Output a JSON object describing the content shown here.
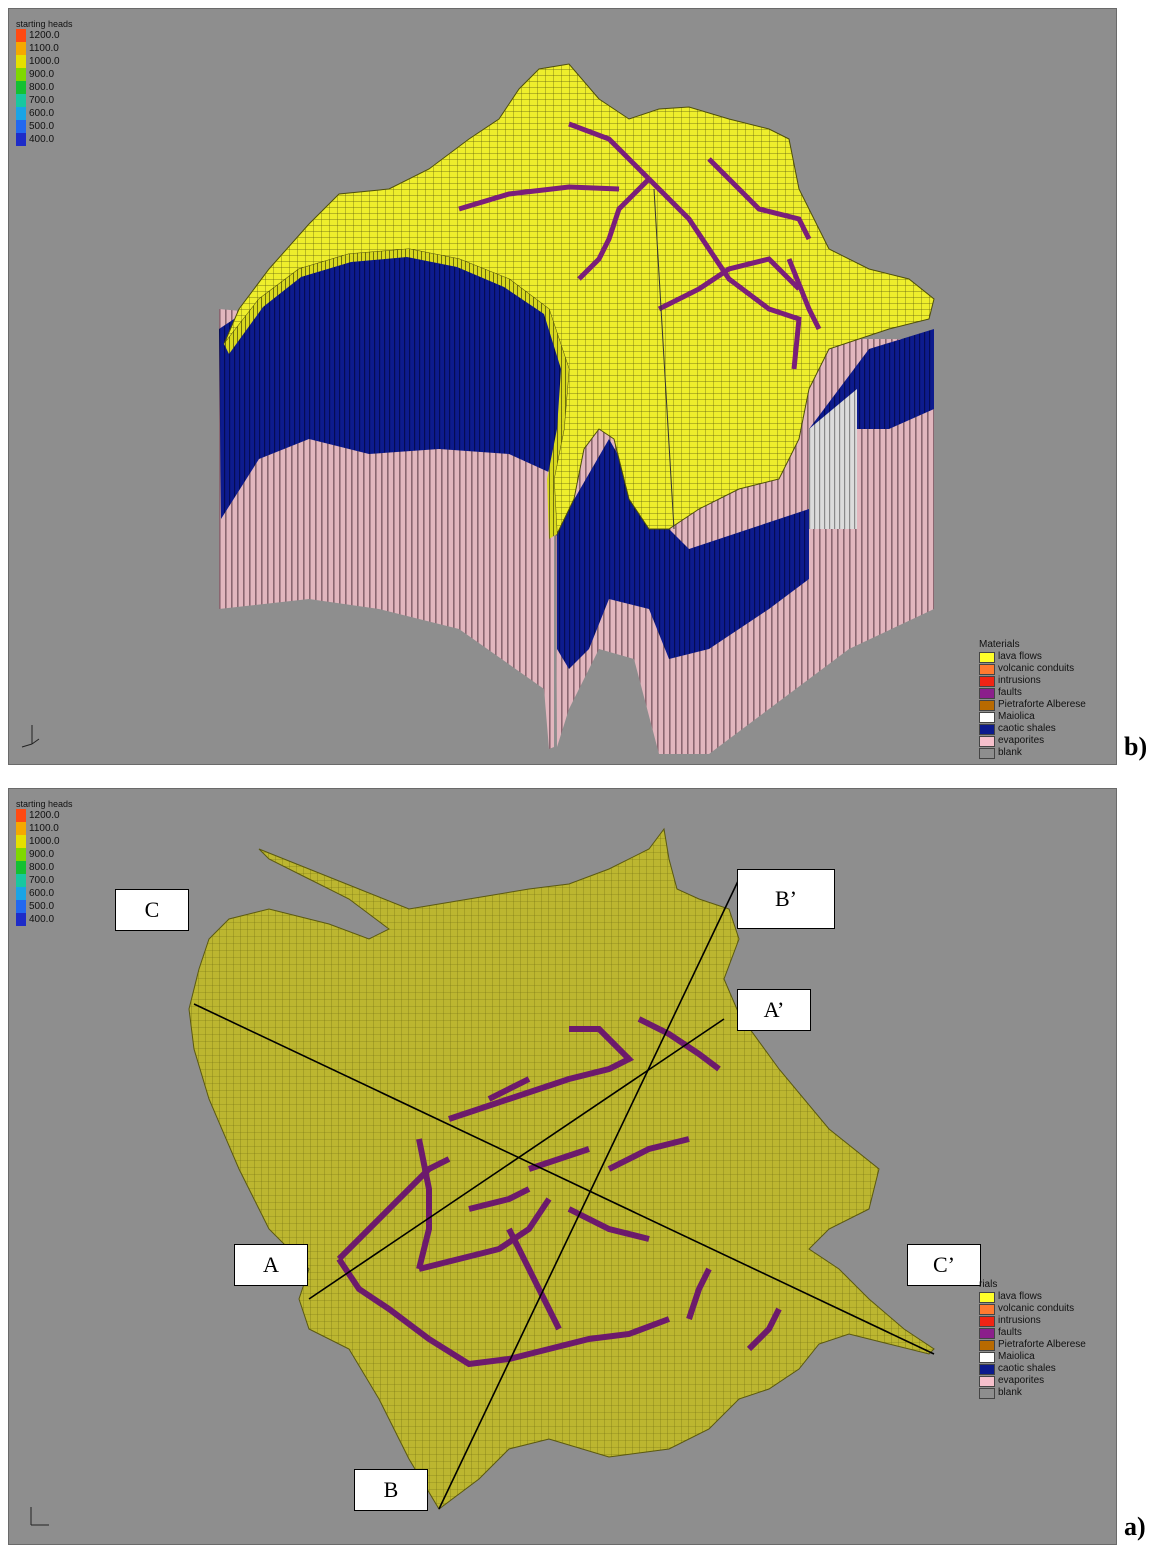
{
  "panel_b": {
    "label": "b)",
    "colorbar": {
      "title": "starting heads",
      "values": [
        "1200.0",
        "1100.0",
        "1000.0",
        "900.0",
        "800.0",
        "700.0",
        "600.0",
        "500.0",
        "400.0"
      ],
      "colors": [
        "#ff4a12",
        "#f5a800",
        "#e5e000",
        "#7fd800",
        "#14c032",
        "#18c8a0",
        "#1aa4e6",
        "#2268f0",
        "#1e2cc8"
      ]
    },
    "legend": {
      "title": "Materials",
      "items": [
        {
          "name": "lava flows",
          "color": "#ffff2a"
        },
        {
          "name": "volcanic conduits",
          "color": "#ff7a30"
        },
        {
          "name": "intrusions",
          "color": "#f02414"
        },
        {
          "name": "faults",
          "color": "#8b1f8b"
        },
        {
          "name": "Pietraforte Alberese",
          "color": "#b86a00"
        },
        {
          "name": "Maiolica",
          "color": "#ffffff"
        },
        {
          "name": "caotic shales",
          "color": "#0c1a8c"
        },
        {
          "name": "evaporites",
          "color": "#f6c0cc"
        },
        {
          "name": "blank",
          "color": "#8e8e8e"
        }
      ]
    }
  },
  "panel_a": {
    "label": "a)",
    "colorbar": {
      "title": "starting heads",
      "values": [
        "1200.0",
        "1100.0",
        "1000.0",
        "900.0",
        "800.0",
        "700.0",
        "600.0",
        "500.0",
        "400.0"
      ],
      "colors": [
        "#ff4a12",
        "#f5a800",
        "#e5e000",
        "#7fd800",
        "#14c032",
        "#18c8a0",
        "#1aa4e6",
        "#2268f0",
        "#1e2cc8"
      ]
    },
    "legend": {
      "title": "rials",
      "items": [
        {
          "name": "lava flows",
          "color": "#ffff2a"
        },
        {
          "name": "volcanic conduits",
          "color": "#ff7a30"
        },
        {
          "name": "intrusions",
          "color": "#f02414"
        },
        {
          "name": "faults",
          "color": "#8b1f8b"
        },
        {
          "name": "Pietraforte Alberese",
          "color": "#b86a00"
        },
        {
          "name": "Maiolica",
          "color": "#ffffff"
        },
        {
          "name": "caotic shales",
          "color": "#0c1a8c"
        },
        {
          "name": "evaporites",
          "color": "#f6c0cc"
        },
        {
          "name": "blank",
          "color": "#8e8e8e"
        }
      ]
    },
    "sections": {
      "A": "A",
      "A_prime": "A’",
      "B": "B",
      "B_prime": "B’",
      "C": "C",
      "C_prime": "C’"
    }
  },
  "colors": {
    "background": "#8e8e8e",
    "lava": "#e8e82a",
    "lava_map": "#b8b42e",
    "fault": "#7a1e7a",
    "shale": "#0c1a8c",
    "evaporite": "#d8a8b0",
    "maiolica": "#d8d8d8"
  }
}
